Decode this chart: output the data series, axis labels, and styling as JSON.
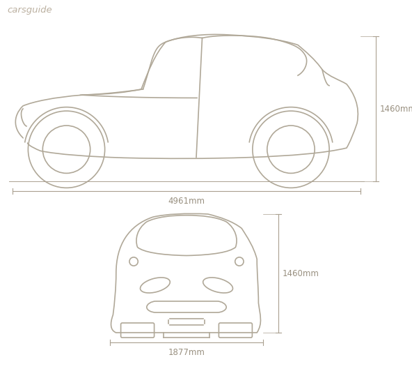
{
  "bg_color": "#ffffff",
  "line_color": "#b0a898",
  "text_color": "#999080",
  "dim_line_color": "#aaa090",
  "logo_text": "carsguide",
  "logo_color": "#bbb0a0",
  "side_height_label": "1460mm",
  "side_length_label": "4961mm",
  "front_height_label": "1460mm",
  "front_width_label": "1877mm",
  "line_width": 1.2,
  "font_size_label": 8.5,
  "font_size_logo": 9.5
}
